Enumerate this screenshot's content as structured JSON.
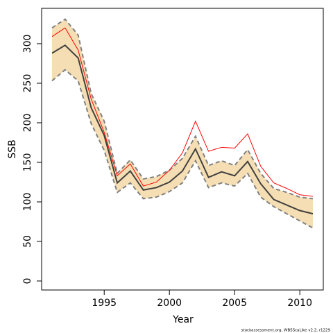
{
  "chart_data": {
    "type": "line",
    "x_label": "Year",
    "y_label": "SSB",
    "footer": "stockassessment.org, WBSScaLike v2.2, r1229",
    "x": [
      1991,
      1992,
      1993,
      1994,
      1995,
      1996,
      1997,
      1998,
      1999,
      2000,
      2001,
      2002,
      2003,
      2004,
      2005,
      2006,
      2007,
      2008,
      2009,
      2010,
      2011
    ],
    "series": [
      {
        "color": "#404040",
        "values": [
          288,
          298,
          282,
          219,
          184,
          124,
          139,
          115,
          118,
          125,
          139,
          167,
          131,
          138,
          133,
          151,
          123,
          103,
          96,
          89,
          85
        ]
      },
      {
        "color": "#ff0000",
        "values": [
          309,
          320,
          292,
          230,
          188,
          133,
          148,
          120,
          125,
          140,
          162,
          202,
          164,
          169,
          168,
          186,
          145,
          124,
          117,
          109,
          107
        ]
      }
    ],
    "band": {
      "color": "#f5deb3",
      "edge_color": "#808080",
      "upper": [
        320,
        331,
        311,
        237,
        202,
        136,
        153,
        129,
        132,
        140,
        155,
        183,
        146,
        152,
        146,
        166,
        136,
        117,
        112,
        106,
        104
      ],
      "lower": [
        253,
        267,
        253,
        199,
        165,
        112,
        124,
        104,
        106,
        113,
        124,
        152,
        118,
        124,
        120,
        136,
        106,
        94,
        85,
        76,
        67
      ]
    },
    "xlim": [
      1990.2,
      2011.8
    ],
    "xticks": [
      1995,
      2000,
      2005,
      2010
    ],
    "ylim": [
      -11.4,
      344.7
    ],
    "yticks": [
      0,
      50,
      100,
      150,
      200,
      250,
      300
    ]
  }
}
